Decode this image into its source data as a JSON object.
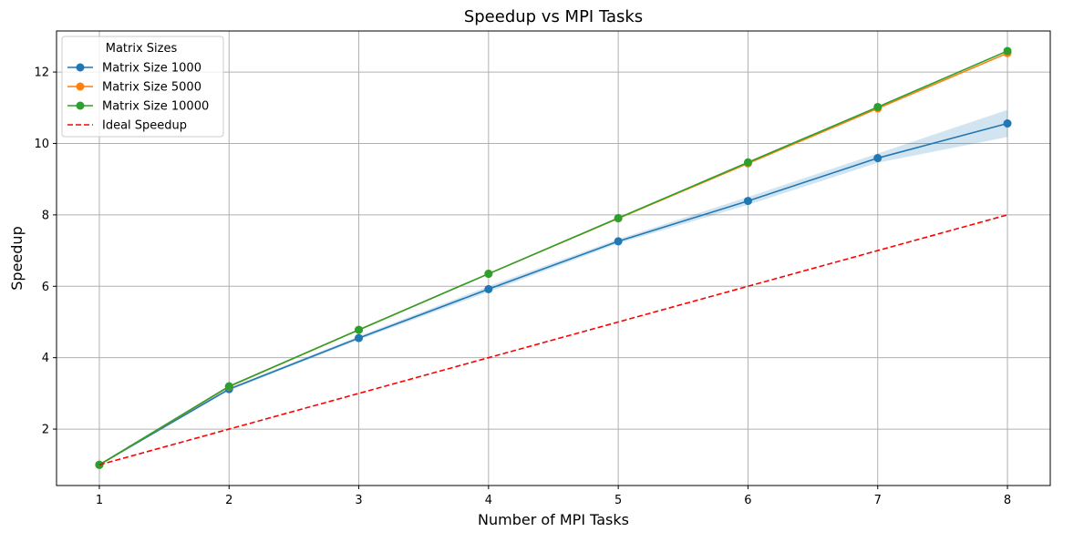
{
  "chart_data": {
    "type": "line",
    "title": "Speedup vs MPI Tasks",
    "xlabel": "Number of MPI Tasks",
    "ylabel": "Speedup",
    "x": [
      1,
      2,
      3,
      4,
      5,
      6,
      7,
      8
    ],
    "xlim": [
      0.67,
      8.33
    ],
    "ylim": [
      0.42,
      13.15
    ],
    "xticks": [
      1,
      2,
      3,
      4,
      5,
      6,
      7,
      8
    ],
    "yticks": [
      2,
      4,
      6,
      8,
      10,
      12
    ],
    "grid": true,
    "legend": {
      "title": "Matrix Sizes",
      "placement": "top-left"
    },
    "series": [
      {
        "name": "Matrix Size 1000",
        "color": "#1f77b4",
        "style": "solid",
        "marker": "circle",
        "values": [
          1.0,
          3.12,
          4.55,
          5.92,
          7.26,
          8.39,
          9.59,
          10.56
        ],
        "band_lower": [
          1.0,
          3.08,
          4.5,
          5.84,
          7.2,
          8.28,
          9.46,
          10.18
        ],
        "band_upper": [
          1.0,
          3.16,
          4.6,
          6.0,
          7.32,
          8.5,
          9.72,
          10.94
        ]
      },
      {
        "name": "Matrix Size 5000",
        "color": "#ff7f0e",
        "style": "solid",
        "marker": "circle",
        "values": [
          1.0,
          3.19,
          4.78,
          6.35,
          7.9,
          9.44,
          10.98,
          12.53
        ]
      },
      {
        "name": "Matrix Size 10000",
        "color": "#2ca02c",
        "style": "solid",
        "marker": "circle",
        "values": [
          1.0,
          3.2,
          4.78,
          6.35,
          7.91,
          9.47,
          11.02,
          12.59
        ]
      },
      {
        "name": "Ideal Speedup",
        "color": "#ff0000",
        "style": "dashed",
        "marker": "none",
        "values": [
          1,
          2,
          3,
          4,
          5,
          6,
          7,
          8
        ]
      }
    ]
  }
}
